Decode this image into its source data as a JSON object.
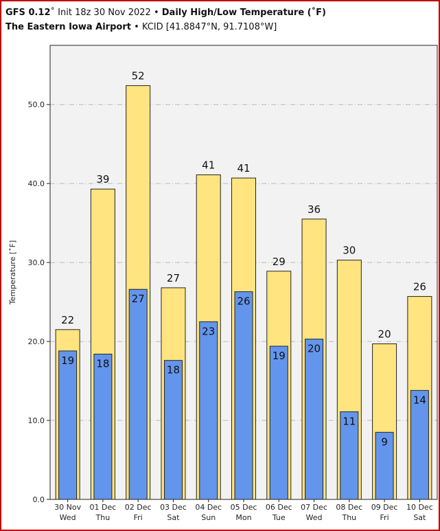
{
  "header": {
    "model": "GFS 0.12",
    "init_text": "˚ Init 18z 30 Nov 2022",
    "sep1": " • ",
    "product": "Daily High/Low Temperature (˚F)",
    "location": "The Eastern Iowa Airport",
    "sep2": " • ",
    "station": "KCID [41.8847°N, 91.7108°W]"
  },
  "colors": {
    "high_bar": "#ffe47f",
    "low_bar": "#6495ed",
    "plot_bg": "#f2f2f2",
    "frame": "#c00000"
  },
  "chart_data": {
    "type": "bar",
    "ylabel": "Temperature [˚F]",
    "ylim": [
      0,
      57.5
    ],
    "yticks": [
      "0.0",
      "10.0",
      "20.0",
      "30.0",
      "40.0",
      "50.0"
    ],
    "grid": "horizontal dashed",
    "categories": [
      [
        "30 Nov",
        "Wed"
      ],
      [
        "01 Dec",
        "Thu"
      ],
      [
        "02 Dec",
        "Fri"
      ],
      [
        "03 Dec",
        "Sat"
      ],
      [
        "04 Dec",
        "Sun"
      ],
      [
        "05 Dec",
        "Mon"
      ],
      [
        "06 Dec",
        "Tue"
      ],
      [
        "07 Dec",
        "Wed"
      ],
      [
        "08 Dec",
        "Thu"
      ],
      [
        "09 Dec",
        "Fri"
      ],
      [
        "10 Dec",
        "Sat"
      ]
    ],
    "series": [
      {
        "values": [
          21.5,
          39.3,
          52.4,
          26.8,
          41.1,
          40.7,
          28.9,
          35.5,
          30.3,
          19.7,
          25.7
        ],
        "labels": [
          "22",
          "39",
          "52",
          "27",
          "41",
          "41",
          "29",
          "36",
          "30",
          "20",
          "26"
        ]
      },
      {
        "values": [
          18.8,
          18.4,
          26.6,
          17.6,
          22.5,
          26.3,
          19.4,
          20.3,
          11.1,
          8.5,
          13.8
        ],
        "labels": [
          "19",
          "18",
          "27",
          "18",
          "23",
          "26",
          "19",
          "20",
          "11",
          "9",
          "14"
        ]
      }
    ]
  }
}
